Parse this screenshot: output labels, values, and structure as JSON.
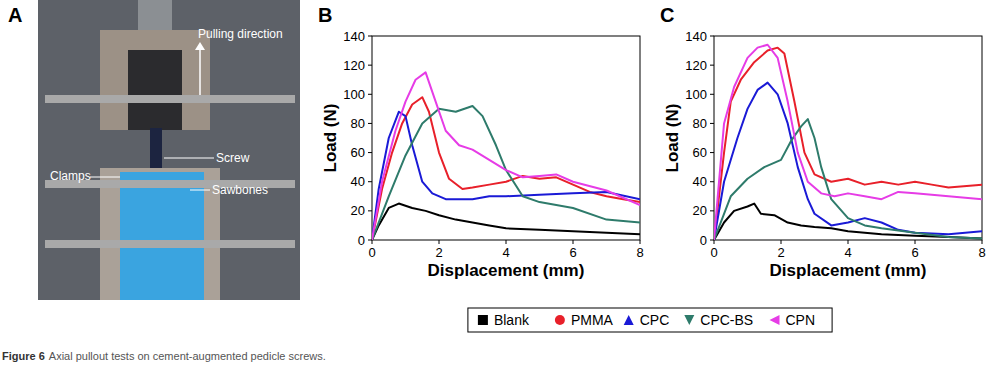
{
  "figure": {
    "caption_label": "Figure 6",
    "caption": "Axial pullout tests on cement-augmented pedicle screws.",
    "panel_a": {
      "title": "A",
      "labels": [
        "Pulling direction",
        "Screw",
        "Clamps",
        "Sawbones"
      ]
    }
  },
  "chart_data": [
    {
      "type": "line",
      "title": "B",
      "x_label": "Displacement (mm)",
      "y_label": "Load (N)",
      "xlim": [
        0,
        8
      ],
      "xticks": [
        0,
        2,
        4,
        6,
        8
      ],
      "ylim": [
        0,
        140
      ],
      "yticks": [
        0,
        20,
        40,
        60,
        80,
        100,
        120,
        140
      ],
      "legend": "bottom",
      "series": [
        {
          "name": "Blank",
          "color": "#000000",
          "marker": "square",
          "x": [
            0,
            0.2,
            0.5,
            0.8,
            1.2,
            1.6,
            2,
            2.5,
            3,
            3.5,
            4,
            5,
            6,
            7,
            8
          ],
          "values": [
            0,
            10,
            22,
            25,
            22,
            20,
            17,
            14,
            12,
            10,
            8,
            7,
            6,
            5,
            4
          ]
        },
        {
          "name": "PMMA",
          "color": "#e8202a",
          "marker": "circle",
          "x": [
            0,
            0.3,
            0.6,
            0.9,
            1.2,
            1.5,
            1.7,
            2,
            2.3,
            2.7,
            3,
            3.5,
            4,
            4.5,
            5,
            5.5,
            6,
            6.5,
            7,
            7.5,
            8
          ],
          "values": [
            0,
            35,
            60,
            80,
            93,
            98,
            88,
            60,
            42,
            35,
            36,
            38,
            40,
            44,
            42,
            43,
            38,
            33,
            30,
            28,
            26
          ]
        },
        {
          "name": "CPC",
          "color": "#1a1ad6",
          "marker": "triangle-up",
          "x": [
            0,
            0.2,
            0.5,
            0.8,
            1,
            1.2,
            1.5,
            1.8,
            2.2,
            3,
            3.5,
            4,
            5,
            6,
            7,
            8
          ],
          "values": [
            0,
            35,
            70,
            88,
            85,
            65,
            40,
            32,
            28,
            28,
            30,
            30,
            31,
            32,
            33,
            28
          ]
        },
        {
          "name": "CPC-BS",
          "color": "#2e7b6b",
          "marker": "triangle-down",
          "x": [
            0,
            0.5,
            1,
            1.5,
            2,
            2.5,
            3,
            3.3,
            3.7,
            4,
            4.5,
            5,
            6,
            7,
            8
          ],
          "values": [
            0,
            30,
            58,
            80,
            90,
            88,
            92,
            85,
            65,
            48,
            30,
            26,
            22,
            14,
            12
          ]
        },
        {
          "name": "CPN",
          "color": "#e63ce6",
          "marker": "triangle-left",
          "x": [
            0,
            0.3,
            0.7,
            1,
            1.3,
            1.6,
            1.9,
            2.2,
            2.6,
            3,
            3.5,
            4,
            4.5,
            5,
            5.5,
            6,
            7,
            8
          ],
          "values": [
            0,
            40,
            75,
            95,
            110,
            115,
            95,
            75,
            65,
            62,
            55,
            48,
            43,
            44,
            45,
            40,
            34,
            24
          ]
        }
      ]
    },
    {
      "type": "line",
      "title": "C",
      "x_label": "Displacement (mm)",
      "y_label": "Load (N)",
      "xlim": [
        0,
        8
      ],
      "xticks": [
        0,
        2,
        4,
        6,
        8
      ],
      "ylim": [
        0,
        140
      ],
      "yticks": [
        0,
        20,
        40,
        60,
        80,
        100,
        120,
        140
      ],
      "legend": "bottom",
      "series": [
        {
          "name": "Blank",
          "color": "#000000",
          "marker": "square",
          "x": [
            0,
            0.3,
            0.6,
            1,
            1.2,
            1.4,
            1.8,
            2.2,
            2.6,
            3,
            3.5,
            4,
            5,
            6,
            7,
            8
          ],
          "values": [
            0,
            12,
            20,
            23,
            25,
            18,
            17,
            12,
            10,
            9,
            8,
            6,
            4,
            3,
            2,
            1
          ]
        },
        {
          "name": "PMMA",
          "color": "#e8202a",
          "marker": "circle",
          "x": [
            0,
            0.3,
            0.5,
            0.8,
            1.2,
            1.6,
            1.9,
            2.1,
            2.4,
            2.7,
            3,
            3.5,
            4,
            4.5,
            5,
            5.5,
            6,
            6.5,
            7,
            8
          ],
          "values": [
            0,
            60,
            95,
            110,
            122,
            130,
            132,
            128,
            95,
            60,
            45,
            40,
            42,
            38,
            40,
            38,
            40,
            38,
            36,
            38
          ]
        },
        {
          "name": "CPC",
          "color": "#1a1ad6",
          "marker": "triangle-up",
          "x": [
            0,
            0.3,
            0.7,
            1,
            1.3,
            1.6,
            1.9,
            2.2,
            2.5,
            2.8,
            3,
            3.5,
            4,
            4.5,
            5,
            5.5,
            6,
            7,
            8
          ],
          "values": [
            0,
            40,
            70,
            90,
            103,
            108,
            100,
            80,
            50,
            28,
            18,
            10,
            12,
            15,
            12,
            7,
            5,
            4,
            6
          ]
        },
        {
          "name": "CPC-BS",
          "color": "#2e7b6b",
          "marker": "triangle-down",
          "x": [
            0,
            0.5,
            1,
            1.5,
            2,
            2.3,
            2.6,
            2.8,
            3,
            3.2,
            3.5,
            4,
            4.5,
            5,
            6,
            7,
            8
          ],
          "values": [
            0,
            30,
            42,
            50,
            55,
            68,
            78,
            83,
            70,
            50,
            28,
            15,
            10,
            8,
            5,
            2,
            1
          ]
        },
        {
          "name": "CPN",
          "color": "#e63ce6",
          "marker": "triangle-left",
          "x": [
            0,
            0.3,
            0.6,
            1,
            1.3,
            1.6,
            1.9,
            2.2,
            2.5,
            2.8,
            3.2,
            3.6,
            4,
            4.5,
            5,
            5.5,
            6,
            7,
            8
          ],
          "values": [
            0,
            80,
            105,
            125,
            132,
            134,
            125,
            95,
            60,
            40,
            32,
            30,
            32,
            30,
            28,
            33,
            32,
            30,
            28
          ]
        }
      ]
    }
  ]
}
